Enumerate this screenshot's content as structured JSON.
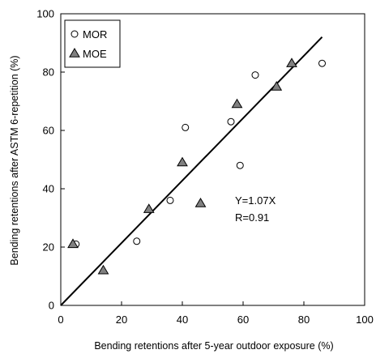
{
  "chart_data": {
    "type": "scatter",
    "title": "",
    "xlabel": "Bending retentions after 5-year outdoor exposure (%)",
    "ylabel": "Bending retentions after ASTM 6-repetition (%)",
    "xlim": [
      0,
      100
    ],
    "ylim": [
      0,
      100
    ],
    "x_ticks": [
      0,
      20,
      40,
      60,
      80,
      100
    ],
    "y_ticks": [
      0,
      20,
      40,
      60,
      80,
      100
    ],
    "grid": false,
    "legend_position": "top-left",
    "series": [
      {
        "name": "MOR",
        "marker": "open-circle",
        "color": "#000000",
        "points": [
          {
            "x": 5,
            "y": 21
          },
          {
            "x": 25,
            "y": 22
          },
          {
            "x": 36,
            "y": 36
          },
          {
            "x": 41,
            "y": 61
          },
          {
            "x": 56,
            "y": 63
          },
          {
            "x": 59,
            "y": 48
          },
          {
            "x": 64,
            "y": 79
          },
          {
            "x": 86,
            "y": 83
          }
        ]
      },
      {
        "name": "MOE",
        "marker": "filled-triangle",
        "color": "#808080",
        "points": [
          {
            "x": 4,
            "y": 21
          },
          {
            "x": 14,
            "y": 12
          },
          {
            "x": 29,
            "y": 33
          },
          {
            "x": 40,
            "y": 49
          },
          {
            "x": 46,
            "y": 35
          },
          {
            "x": 58,
            "y": 69
          },
          {
            "x": 71,
            "y": 75
          },
          {
            "x": 76,
            "y": 83
          }
        ]
      }
    ],
    "regression": {
      "slope": 1.07,
      "x_range": [
        0,
        86
      ],
      "equation_label": "Y=1.07X",
      "r_label": "R=0.91"
    }
  }
}
